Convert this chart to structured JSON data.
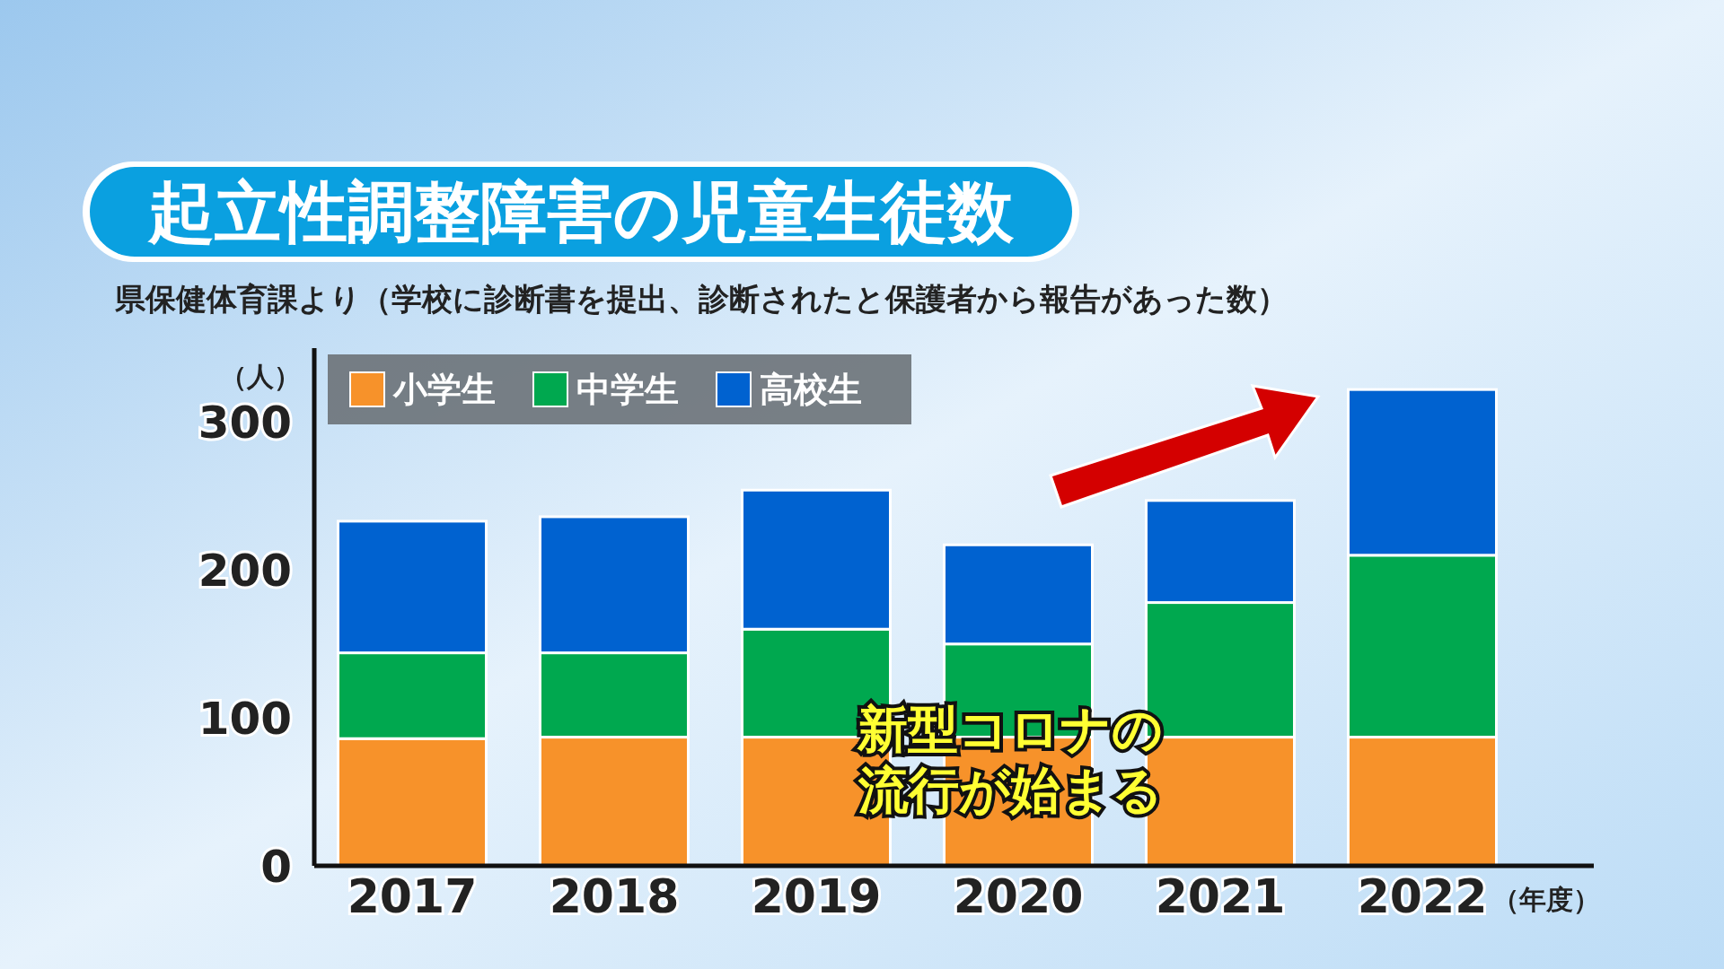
{
  "chart_data": {
    "type": "bar",
    "stacked": true,
    "title": "起立性調整障害の児童生徒数",
    "subtitle": "県保健体育課より（学校に診断書を提出、診断されたと保護者から報告があった数）",
    "ylabel": "（人）",
    "xlabel": "（年度）",
    "categories": [
      "2017",
      "2018",
      "2019",
      "2020",
      "2021",
      "2022"
    ],
    "series": [
      {
        "name": "小学生",
        "color": "#f7922a",
        "values": [
          86,
          87,
          87,
          87,
          87,
          87
        ]
      },
      {
        "name": "中学生",
        "color": "#00a84f",
        "values": [
          58,
          57,
          73,
          63,
          91,
          123
        ]
      },
      {
        "name": "高校生",
        "color": "#0062d0",
        "values": [
          89,
          92,
          94,
          67,
          69,
          112
        ]
      }
    ],
    "ylim": [
      0,
      350
    ],
    "yticks": [
      0,
      100,
      200,
      300
    ],
    "legend": "top left",
    "annotations": [
      "新型コロナの",
      "流行が始まる"
    ]
  }
}
